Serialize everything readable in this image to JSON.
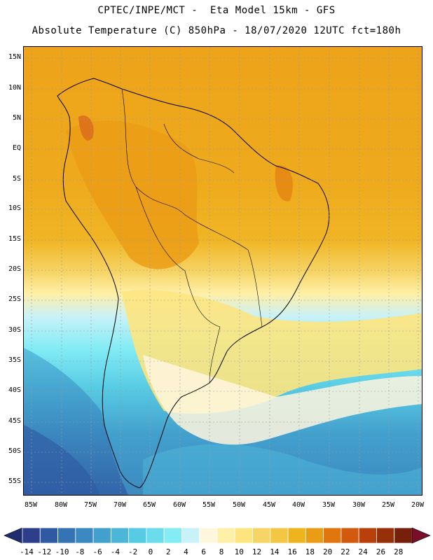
{
  "header": {
    "title_line1": "CPTEC/INPE/MCT -  Eta Model 15km - GFS",
    "title_line2": "Absolute Temperature (C) 850hPa - 18/07/2020 12UTC fct=180h"
  },
  "map": {
    "lat_labels": [
      "15N",
      "10N",
      "5N",
      "EQ",
      "5S",
      "10S",
      "15S",
      "20S",
      "25S",
      "30S",
      "35S",
      "40S",
      "45S",
      "50S",
      "55S"
    ],
    "lon_labels": [
      "85W",
      "80W",
      "75W",
      "70W",
      "65W",
      "60W",
      "55W",
      "50W",
      "45W",
      "40W",
      "35W",
      "30W",
      "25W",
      "20W"
    ]
  },
  "legend": {
    "labels": [
      "-14",
      "-12",
      "-10",
      "-8",
      "-6",
      "-4",
      "-2",
      "0",
      "2",
      "4",
      "6",
      "8",
      "10",
      "12",
      "14",
      "16",
      "18",
      "20",
      "22",
      "24",
      "26",
      "28"
    ],
    "colors": [
      "#2d3e8a",
      "#2f5aa3",
      "#3473b4",
      "#3b89c0",
      "#43a0cd",
      "#4cb6d9",
      "#57cbe4",
      "#6adcec",
      "#83ecf5",
      "#c9f1f8",
      "#fff6de",
      "#fff0a8",
      "#fde47f",
      "#f6d465",
      "#f1c743",
      "#eeb420",
      "#eb9c15",
      "#e1760f",
      "#d15a0c",
      "#b9400b",
      "#963009",
      "#76200b"
    ],
    "under_color": "#1e2d6e",
    "over_color": "#7a0d2a"
  }
}
